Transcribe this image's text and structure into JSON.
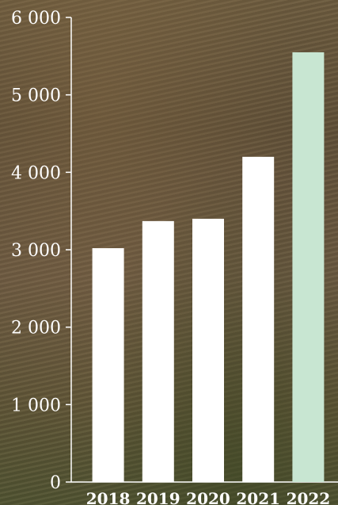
{
  "colors": {
    "bar": "#ffffff",
    "highlight": "#c8e6d2",
    "axis": "#ffffff",
    "text": "#ffffff"
  },
  "chart_data": {
    "type": "bar",
    "categories": [
      "2018",
      "2019",
      "2020",
      "2021",
      "2022"
    ],
    "values": [
      3020,
      3370,
      3400,
      4200,
      5550
    ],
    "highlight_category": "2022",
    "ylim": [
      0,
      6000
    ],
    "yticks": [
      0,
      1000,
      2000,
      3000,
      4000,
      5000,
      6000
    ],
    "ytick_labels": [
      "0",
      "1 000",
      "2 000",
      "3 000",
      "4 000",
      "5 000",
      "6 000"
    ],
    "title": "",
    "xlabel": "",
    "ylabel": "",
    "grid": false,
    "legend": "none"
  }
}
